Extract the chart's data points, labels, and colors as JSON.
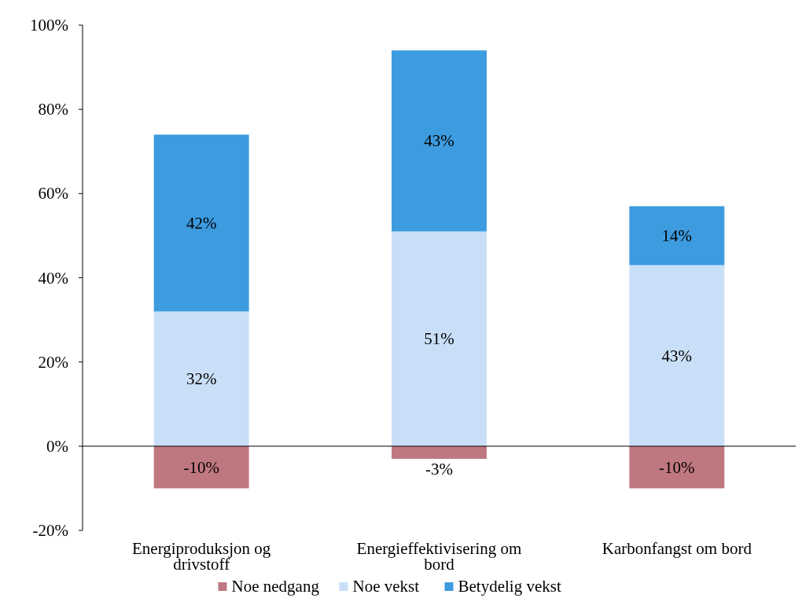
{
  "chart_data": {
    "type": "bar",
    "stacked": true,
    "categories": [
      "Energiproduksjon og drivstoff",
      "Energieffektivisering om bord",
      "Karbonfangst om bord"
    ],
    "series": [
      {
        "name": "Noe nedgang",
        "color": "#c07880",
        "values": [
          -10,
          -3,
          -10
        ],
        "value_labels": [
          "-10%",
          "-3%",
          "-10%"
        ]
      },
      {
        "name": "Noe vekst",
        "color": "#c9dff7",
        "values": [
          32,
          51,
          43
        ],
        "value_labels": [
          "32%",
          "51%",
          "43%"
        ]
      },
      {
        "name": "Betydelig vekst",
        "color": "#3d9be0",
        "values": [
          42,
          43,
          14
        ],
        "value_labels": [
          "42%",
          "43%",
          "14%"
        ]
      }
    ],
    "ylim": [
      -20,
      100
    ],
    "yticks": [
      {
        "value": -20,
        "label": "-20%"
      },
      {
        "value": 0,
        "label": "0%"
      },
      {
        "value": 20,
        "label": "20%"
      },
      {
        "value": 40,
        "label": "40%"
      },
      {
        "value": 60,
        "label": "60%"
      },
      {
        "value": 80,
        "label": "80%"
      },
      {
        "value": 100,
        "label": "100%"
      }
    ],
    "legend": "bottom"
  }
}
